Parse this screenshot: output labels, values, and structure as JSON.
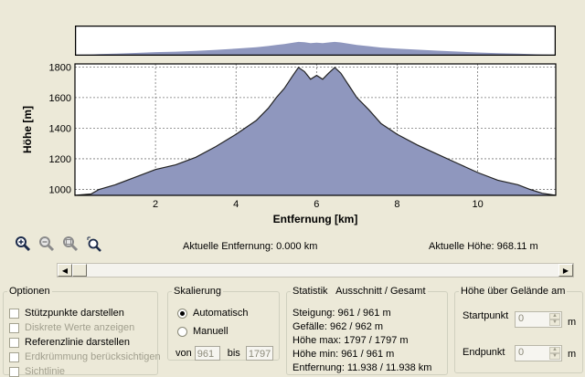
{
  "chart_data": {
    "type": "area",
    "xlabel": "Entfernung [km]",
    "ylabel": "Höhe [m]",
    "xlim": [
      0,
      11.938
    ],
    "ylim": [
      961,
      1820
    ],
    "xticks": [
      2,
      4,
      6,
      8,
      10
    ],
    "yticks": [
      1000,
      1200,
      1400,
      1600,
      1800
    ],
    "grid": true,
    "fill_color": "#8f97be",
    "x": [
      0,
      0.4,
      0.6,
      1.0,
      1.5,
      2.0,
      2.5,
      3.0,
      3.5,
      4.0,
      4.5,
      4.8,
      5.0,
      5.2,
      5.4,
      5.55,
      5.7,
      5.85,
      6.0,
      6.15,
      6.3,
      6.45,
      6.6,
      6.8,
      7.0,
      7.3,
      7.6,
      8.0,
      8.5,
      9.0,
      9.5,
      10.0,
      10.5,
      11.0,
      11.3,
      11.6,
      11.938
    ],
    "y": [
      961,
      970,
      1000,
      1030,
      1080,
      1130,
      1160,
      1210,
      1280,
      1360,
      1450,
      1530,
      1600,
      1660,
      1740,
      1797,
      1770,
      1720,
      1745,
      1720,
      1760,
      1797,
      1760,
      1680,
      1600,
      1520,
      1430,
      1360,
      1290,
      1230,
      1170,
      1110,
      1060,
      1030,
      1000,
      975,
      961
    ]
  },
  "tools": [
    {
      "name": "zoom-in-icon"
    },
    {
      "name": "zoom-out-icon"
    },
    {
      "name": "zoom-fit-icon"
    },
    {
      "name": "zoom-select-icon"
    }
  ],
  "readouts": {
    "distance": "Aktuelle Entfernung: 0.000 km",
    "height": "Aktuelle Höhe: 968.11 m"
  },
  "options": {
    "title": "Optionen",
    "items": [
      {
        "label": "Stützpunkte darstellen",
        "checked": false,
        "enabled": true
      },
      {
        "label": "Diskrete Werte anzeigen",
        "checked": false,
        "enabled": false
      },
      {
        "label": "Referenzlinie darstellen",
        "checked": false,
        "enabled": true
      },
      {
        "label": "Erdkrümmung berücksichtigen",
        "checked": false,
        "enabled": false
      },
      {
        "label": "Sichtlinie",
        "checked": false,
        "enabled": false
      }
    ]
  },
  "scaling": {
    "title": "Skalierung",
    "auto_label": "Automatisch",
    "manual_label": "Manuell",
    "from_label": "von",
    "from_value": "961",
    "to_label": "bis",
    "to_value": "1797"
  },
  "stats": {
    "title": "Statistik   Ausschnitt / Gesamt",
    "lines": [
      "Steigung: 961 / 961 m",
      "Gefälle: 962 / 962 m",
      "Höhe max: 1797 / 1797 m",
      "Höhe min: 961 / 961 m",
      "Entfernung: 11.938 / 11.938 km"
    ]
  },
  "terrain": {
    "title": "Höhe über Gelände am",
    "start_label": "Startpunkt",
    "start_value": "0",
    "start_unit": "m",
    "end_label": "Endpunkt",
    "end_value": "0",
    "end_unit": "m"
  }
}
